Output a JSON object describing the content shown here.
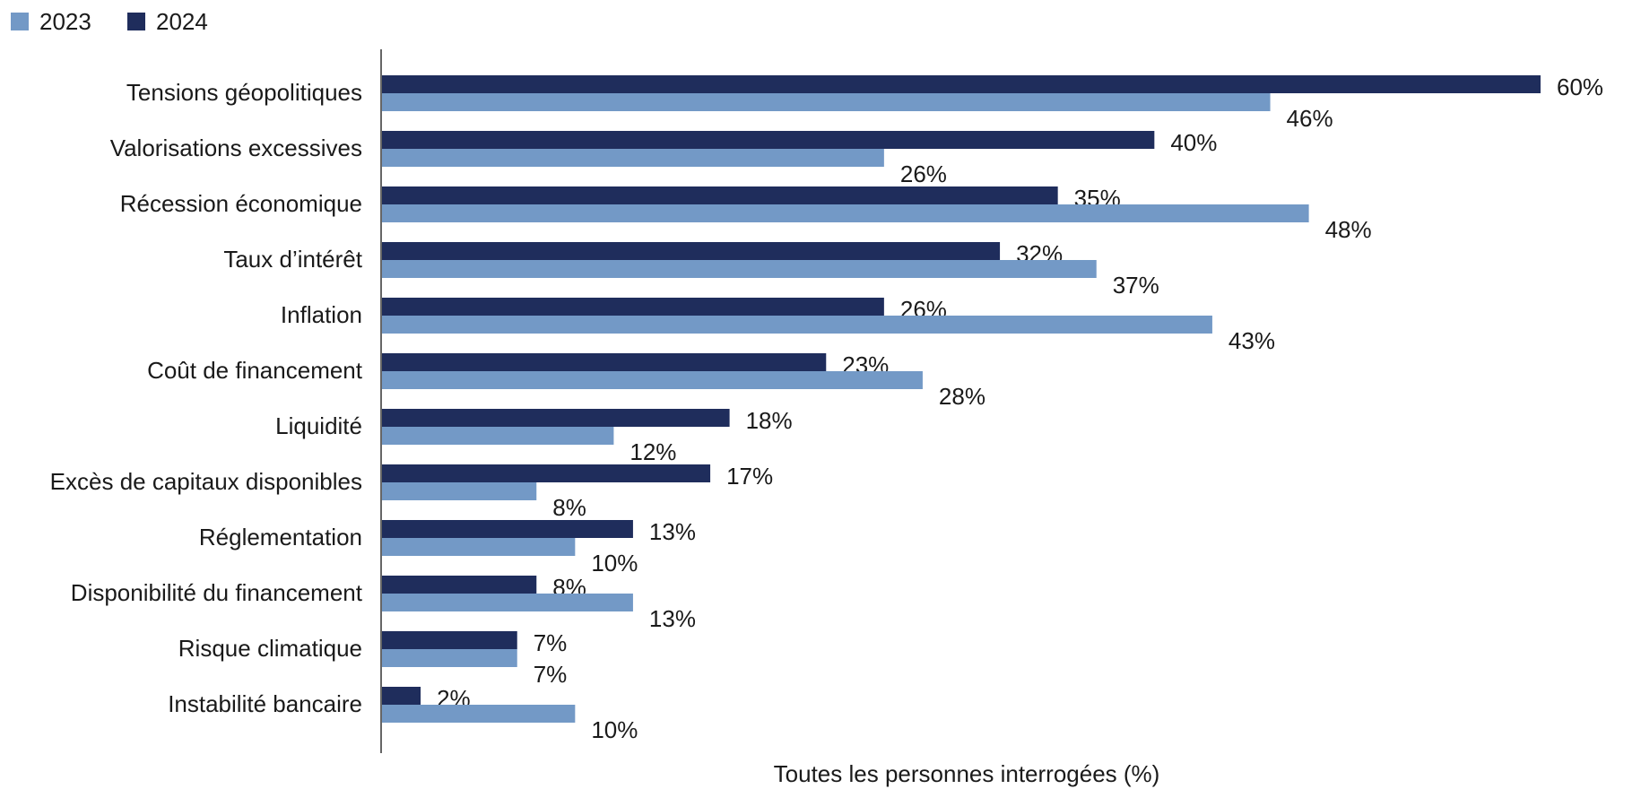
{
  "chart_data": {
    "type": "bar",
    "orientation": "horizontal",
    "categories": [
      "Tensions géopolitiques",
      "Valorisations excessives",
      "Récession économique",
      "Taux d’intérêt",
      "Inflation",
      "Coût de financement",
      "Liquidité",
      "Excès de capitaux disponibles",
      "Réglementation",
      "Disponibilité du financement",
      "Risque climatique",
      "Instabilité bancaire"
    ],
    "series": [
      {
        "name": "2024",
        "color": "#1f2d5c",
        "values": [
          60,
          40,
          35,
          32,
          26,
          23,
          18,
          17,
          13,
          8,
          7,
          2
        ],
        "labels": [
          "60%",
          "40%",
          "35%",
          "32%",
          "26%",
          "23%",
          "18%",
          "17%",
          "13%",
          "8%",
          "7%",
          "2%"
        ]
      },
      {
        "name": "2023",
        "color": "#7399c6",
        "values": [
          46,
          26,
          48,
          37,
          43,
          28,
          12,
          8,
          10,
          13,
          7,
          10
        ],
        "labels": [
          "46%",
          "26%",
          "48%",
          "37%",
          "43%",
          "28%",
          "12%",
          "8%",
          "10%",
          "13%",
          "7%",
          "10%"
        ]
      }
    ],
    "legend": [
      {
        "name": "2023",
        "color": "#7399c6"
      },
      {
        "name": "2024",
        "color": "#1f2d5c"
      }
    ],
    "legend_position": "top-left",
    "xlabel": "Toutes les personnes interrogées (%)",
    "xlim": [
      0,
      60
    ],
    "grid": false
  }
}
